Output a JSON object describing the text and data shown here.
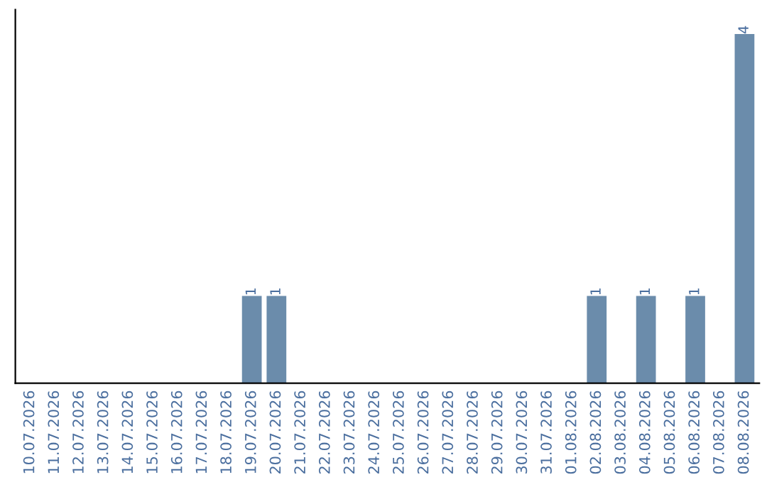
{
  "chart_data": {
    "type": "bar",
    "categories": [
      "10.07.2026",
      "11.07.2026",
      "12.07.2026",
      "13.07.2026",
      "14.07.2026",
      "15.07.2026",
      "16.07.2026",
      "17.07.2026",
      "18.07.2026",
      "19.07.2026",
      "20.07.2026",
      "21.07.2026",
      "22.07.2026",
      "23.07.2026",
      "24.07.2026",
      "25.07.2026",
      "26.07.2026",
      "27.07.2026",
      "28.07.2026",
      "29.07.2026",
      "30.07.2026",
      "31.07.2026",
      "01.08.2026",
      "02.08.2026",
      "03.08.2026",
      "04.08.2026",
      "05.08.2026",
      "06.08.2026",
      "07.08.2026",
      "08.08.2026"
    ],
    "values": [
      0,
      0,
      0,
      0,
      0,
      0,
      0,
      0,
      0,
      1,
      1,
      0,
      0,
      0,
      0,
      0,
      0,
      0,
      0,
      0,
      0,
      0,
      0,
      1,
      0,
      1,
      0,
      1,
      0,
      4
    ],
    "value_labels": [
      null,
      null,
      null,
      null,
      null,
      null,
      null,
      null,
      null,
      "1",
      "1",
      null,
      null,
      null,
      null,
      null,
      null,
      null,
      null,
      null,
      null,
      null,
      null,
      "1",
      null,
      "1",
      null,
      "1",
      null,
      "4"
    ],
    "color": "#6b8cab",
    "tick_labels": "x",
    "grid": false,
    "legend": false
  }
}
